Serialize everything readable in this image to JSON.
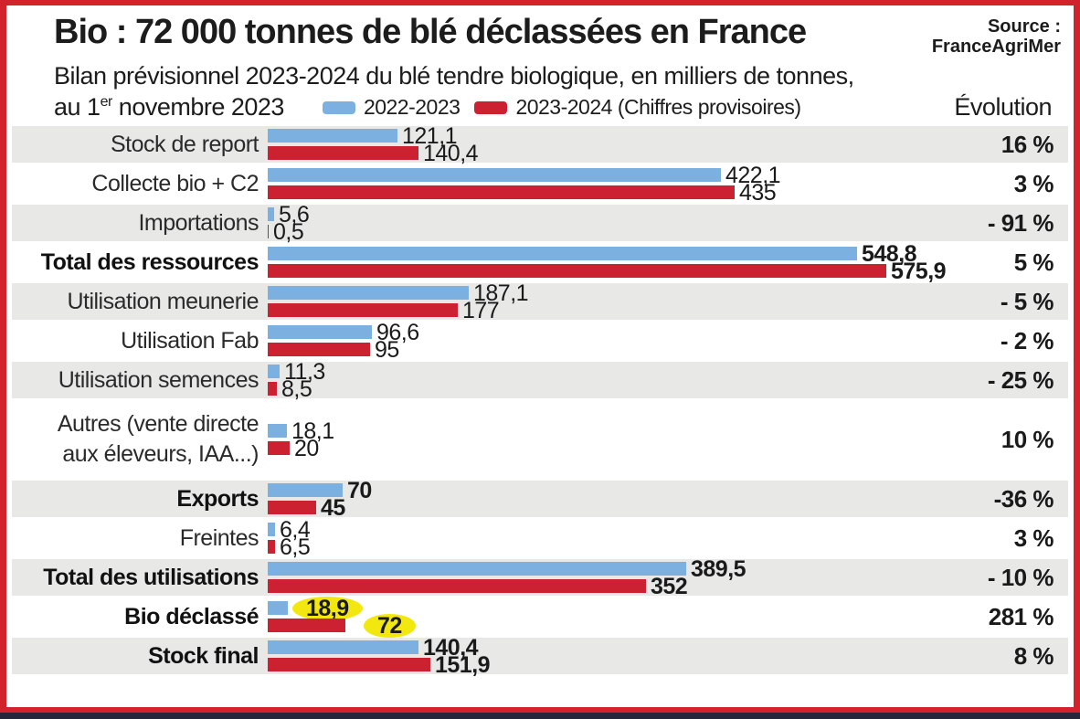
{
  "title": "Bio : 72 000 tonnes de blé déclassées en France",
  "source": {
    "line1": "Source :",
    "line2": "FranceAgriMer"
  },
  "subtitle": {
    "line1": "Bilan prévisionnel 2023-2024 du blé tendre biologique, en milliers de tonnes,",
    "line2_prefix": "au 1",
    "line2_sup": "er",
    "line2_suffix": " novembre 2023"
  },
  "evolution_header": "Évolution",
  "legend": [
    {
      "label": "2022-2023",
      "color": "#7cb0e0"
    },
    {
      "label": "2023-2024 (Chiffres provisoires)",
      "color": "#cb2130"
    }
  ],
  "colors": {
    "series_2022_2023": "#7cb0e0",
    "series_2023_2024": "#cb2130",
    "row_shade": "#e8e8e7",
    "frame_border": "#d2232d",
    "highlight": "#f2e80f",
    "bottom_strip": "#26263a"
  },
  "chart_data": {
    "type": "bar",
    "orientation": "horizontal",
    "unit": "milliers de tonnes",
    "series_names": [
      "2022-2023",
      "2023-2024 (Chiffres provisoires)"
    ],
    "xlim": [
      0,
      620
    ],
    "grid": false,
    "legend_position": "top",
    "rows": [
      {
        "label": "Stock de report",
        "values": [
          121.1,
          140.4
        ],
        "value_labels": [
          "121,1",
          "140,4"
        ],
        "evolution": "16 %",
        "bold": false,
        "shade": "gray",
        "highlight": false
      },
      {
        "label": "Collecte bio + C2",
        "values": [
          422.1,
          435
        ],
        "value_labels": [
          "422,1",
          "435"
        ],
        "evolution": "3 %",
        "bold": false,
        "shade": "white",
        "highlight": false
      },
      {
        "label": "Importations",
        "values": [
          5.6,
          0.5
        ],
        "value_labels": [
          "5,6",
          "0,5"
        ],
        "evolution": "- 91 %",
        "bold": false,
        "shade": "gray",
        "highlight": false
      },
      {
        "label": "Total des ressources",
        "values": [
          548.8,
          575.9
        ],
        "value_labels": [
          "548,8",
          "575,9"
        ],
        "evolution": "5 %",
        "bold": true,
        "shade": "white",
        "highlight": false
      },
      {
        "label": "Utilisation meunerie",
        "values": [
          187.1,
          177
        ],
        "value_labels": [
          "187,1",
          "177"
        ],
        "evolution": "- 5 %",
        "bold": false,
        "shade": "gray",
        "highlight": false
      },
      {
        "label": "Utilisation Fab",
        "values": [
          96.6,
          95
        ],
        "value_labels": [
          "96,6",
          "95"
        ],
        "evolution": "- 2 %",
        "bold": false,
        "shade": "white",
        "highlight": false
      },
      {
        "label": "Utilisation semences",
        "values": [
          11.3,
          8.5
        ],
        "value_labels": [
          "11,3",
          "8,5"
        ],
        "evolution": "- 25 %",
        "bold": false,
        "shade": "gray",
        "highlight": false
      },
      {
        "label": "Autres (vente directe",
        "label2": "aux éleveurs, IAA...)",
        "values": [
          18.1,
          20
        ],
        "value_labels": [
          "18,1",
          "20"
        ],
        "evolution": "10 %",
        "bold": false,
        "shade": "white",
        "highlight": false
      },
      {
        "label": "Exports",
        "values": [
          70,
          45
        ],
        "value_labels": [
          "70",
          "45"
        ],
        "evolution": "-36 %",
        "bold": true,
        "shade": "gray",
        "highlight": false
      },
      {
        "label": "Freintes",
        "values": [
          6.4,
          6.5
        ],
        "value_labels": [
          "6,4",
          "6,5"
        ],
        "evolution": "3 %",
        "bold": false,
        "shade": "white",
        "highlight": false
      },
      {
        "label": "Total des utilisations",
        "values": [
          389.5,
          352
        ],
        "value_labels": [
          "389,5",
          "352"
        ],
        "evolution": "- 10 %",
        "bold": true,
        "shade": "gray",
        "highlight": false
      },
      {
        "label": "Bio déclassé",
        "values": [
          18.9,
          72
        ],
        "value_labels": [
          "18,9",
          "72"
        ],
        "evolution": "281 %",
        "bold": true,
        "shade": "white",
        "highlight": true
      },
      {
        "label": "Stock final",
        "values": [
          140.4,
          151.9
        ],
        "value_labels": [
          "140,4",
          "151,9"
        ],
        "evolution": "8 %",
        "bold": true,
        "shade": "gray",
        "highlight": false
      }
    ]
  }
}
